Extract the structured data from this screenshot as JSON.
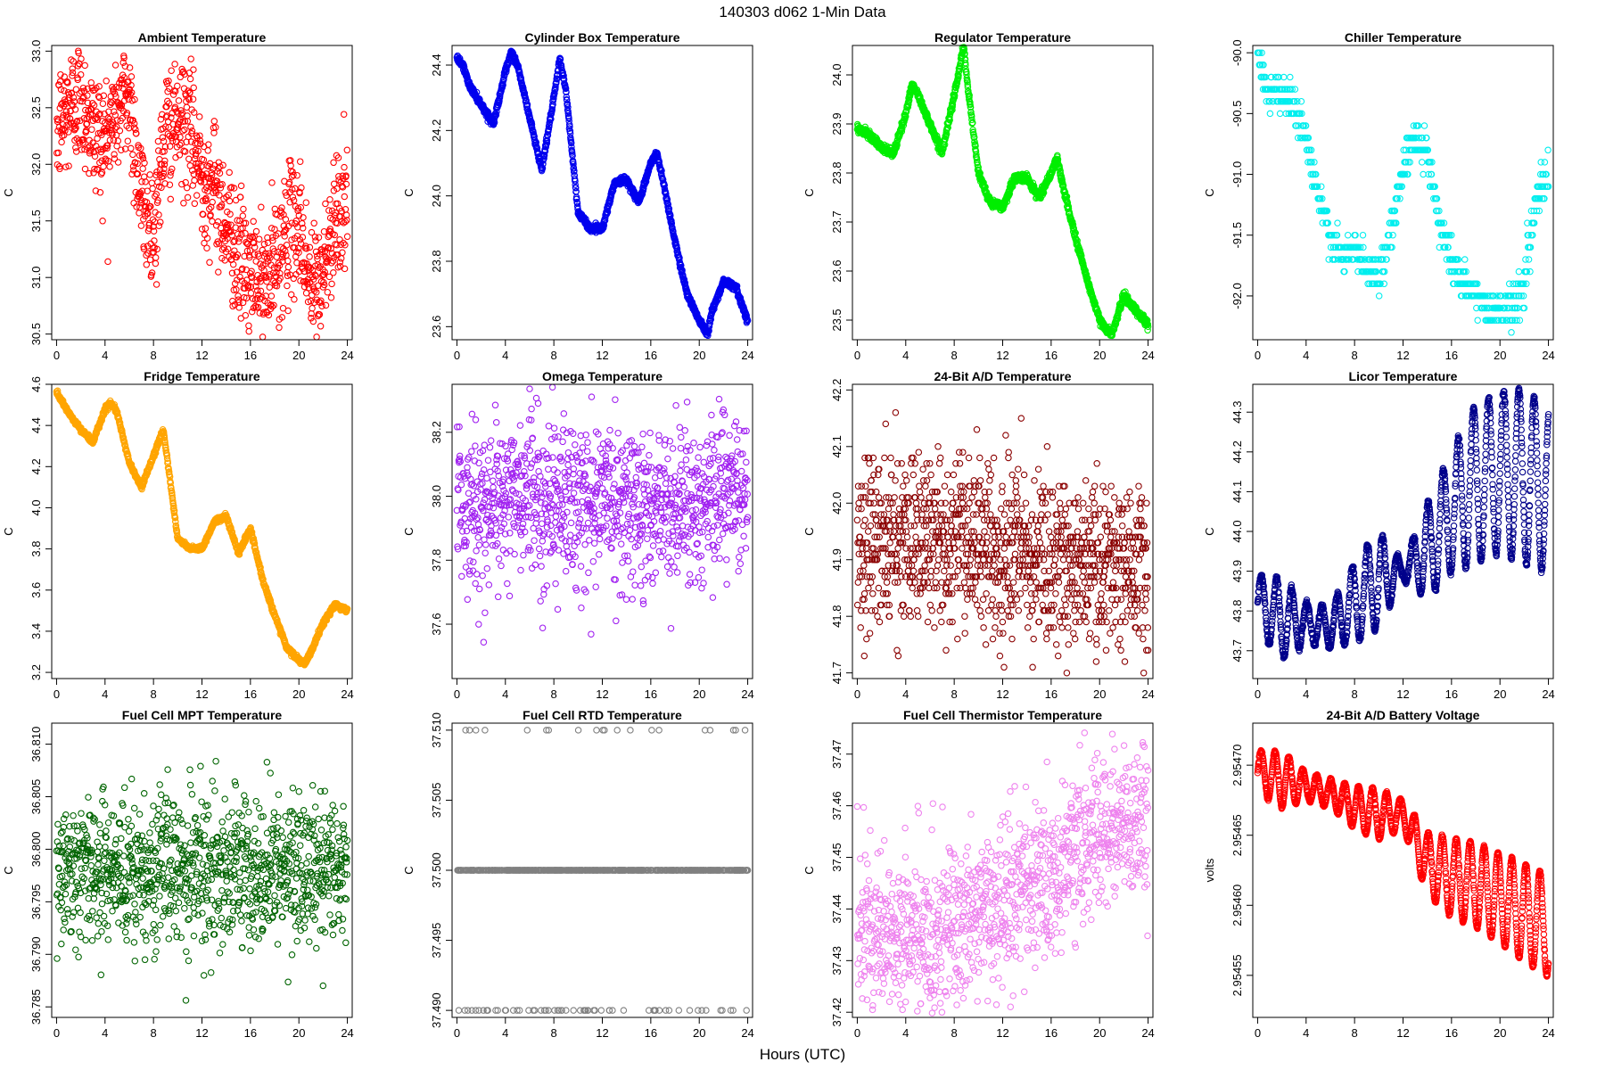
{
  "figure": {
    "title": "140303    d062    1-Min Data",
    "xlabel": "Hours (UTC)"
  },
  "chart_data": [
    {
      "type": "scatter",
      "title": "Ambient Temperature",
      "ylabel": "C",
      "color": "#ff0000",
      "ylim": [
        30.45,
        33.05
      ],
      "yticks": [
        30.5,
        31.0,
        31.5,
        32.0,
        32.5,
        33.0
      ],
      "ytick_labels": [
        "30.5",
        "31.0",
        "31.5",
        "32.0",
        "32.5",
        "33.0"
      ],
      "xlim": [
        -0.4,
        24.4
      ],
      "xticks": [
        0,
        4,
        8,
        12,
        16,
        20,
        24
      ],
      "pattern": "ambient",
      "density": 1100,
      "x": [
        0,
        1,
        2,
        3,
        4,
        5,
        6,
        7,
        8,
        9,
        10,
        11,
        12,
        13,
        14,
        15,
        16,
        17,
        18,
        19,
        20,
        21,
        22,
        23,
        24
      ],
      "y": [
        32.3,
        32.5,
        32.6,
        32.3,
        32.2,
        32.5,
        32.6,
        31.7,
        31.4,
        32.3,
        32.4,
        32.3,
        31.9,
        31.8,
        31.5,
        31.2,
        31.0,
        30.9,
        31.1,
        31.4,
        31.5,
        30.9,
        31.0,
        31.6,
        31.6
      ],
      "noise": 0.28
    },
    {
      "type": "scatter",
      "title": "Cylinder Box Temperature",
      "ylabel": "C",
      "color": "#0000ee",
      "ylim": [
        23.56,
        24.46
      ],
      "yticks": [
        23.6,
        23.8,
        24.0,
        24.2,
        24.4
      ],
      "ytick_labels": [
        "23.6",
        "23.8",
        "24.0",
        "24.2",
        "24.4"
      ],
      "xlim": [
        -0.4,
        24.4
      ],
      "xticks": [
        0,
        4,
        8,
        12,
        16,
        20,
        24
      ],
      "pattern": "smooth",
      "density": 1440,
      "x": [
        0,
        0.5,
        1,
        2,
        3,
        4,
        4.5,
        5,
        6,
        7,
        8,
        8.5,
        9,
        10,
        11,
        12,
        13,
        14,
        15,
        16,
        16.5,
        17,
        18,
        19,
        20,
        20.7,
        21,
        22,
        23,
        24
      ],
      "y": [
        24.42,
        24.4,
        24.34,
        24.28,
        24.22,
        24.38,
        24.44,
        24.4,
        24.24,
        24.08,
        24.3,
        24.42,
        24.32,
        23.95,
        23.9,
        23.9,
        24.04,
        24.05,
        23.98,
        24.1,
        24.13,
        24.05,
        23.86,
        23.7,
        23.62,
        23.58,
        23.64,
        23.74,
        23.72,
        23.62
      ],
      "noise": 0.005
    },
    {
      "type": "scatter",
      "title": "Regulator Temperature",
      "ylabel": "C",
      "color": "#00ee00",
      "ylim": [
        23.46,
        24.06
      ],
      "yticks": [
        23.5,
        23.6,
        23.7,
        23.8,
        23.9,
        24.0
      ],
      "ytick_labels": [
        "23.5",
        "23.6",
        "23.7",
        "23.8",
        "23.9",
        "24.0"
      ],
      "xlim": [
        -0.4,
        24.4
      ],
      "xticks": [
        0,
        4,
        8,
        12,
        16,
        20,
        24
      ],
      "pattern": "smooth",
      "density": 1440,
      "x": [
        0,
        1,
        2,
        3,
        4,
        4.5,
        5,
        6,
        7,
        8,
        8.8,
        9,
        10,
        11,
        12,
        13,
        14,
        15,
        16,
        16.5,
        17,
        18,
        19,
        20,
        21,
        22,
        23,
        24
      ],
      "y": [
        23.89,
        23.88,
        23.85,
        23.84,
        23.92,
        23.98,
        23.96,
        23.9,
        23.84,
        23.96,
        24.06,
        24.0,
        23.8,
        23.74,
        23.73,
        23.79,
        23.79,
        23.75,
        23.8,
        23.83,
        23.77,
        23.67,
        23.58,
        23.5,
        23.47,
        23.55,
        23.52,
        23.49
      ],
      "noise": 0.004
    },
    {
      "type": "scatter",
      "title": "Chiller Temperature",
      "ylabel": "C",
      "color": "#00eeee",
      "ylim": [
        -92.36,
        -89.94
      ],
      "yticks": [
        -92.0,
        -91.5,
        -91.0,
        -90.5,
        -90.0
      ],
      "ytick_labels": [
        "-92.0",
        "-91.5",
        "-91.0",
        "-90.5",
        "-90.0"
      ],
      "xlim": [
        -0.4,
        24.4
      ],
      "xticks": [
        0,
        4,
        8,
        12,
        16,
        20,
        24
      ],
      "pattern": "stepped",
      "step": 0.1,
      "density": 700,
      "x": [
        0,
        0.5,
        1,
        2,
        3,
        4,
        5,
        6,
        7,
        8,
        9,
        10,
        11,
        12,
        13,
        14,
        15,
        16,
        17,
        18,
        19,
        20,
        21,
        22,
        23,
        24
      ],
      "y": [
        -90.05,
        -90.2,
        -90.3,
        -90.35,
        -90.4,
        -90.7,
        -91.2,
        -91.5,
        -91.7,
        -91.6,
        -91.8,
        -91.8,
        -91.5,
        -90.9,
        -90.7,
        -90.8,
        -91.4,
        -91.7,
        -91.9,
        -92.0,
        -92.1,
        -92.1,
        -92.1,
        -91.9,
        -91.2,
        -91.0
      ],
      "noise": 0.08
    },
    {
      "type": "scatter",
      "title": "Fridge Temperature",
      "ylabel": "C",
      "color": "#ffa500",
      "ylim": [
        3.17,
        4.6
      ],
      "yticks": [
        3.2,
        3.4,
        3.6,
        3.8,
        4.0,
        4.2,
        4.4,
        4.6
      ],
      "ytick_labels": [
        "3.2",
        "3.4",
        "3.6",
        "3.8",
        "4.0",
        "4.2",
        "4.4",
        "4.6"
      ],
      "xlim": [
        -0.4,
        24.4
      ],
      "xticks": [
        0,
        4,
        8,
        12,
        16,
        20,
        24
      ],
      "pattern": "smooth",
      "density": 1440,
      "x": [
        0,
        1,
        2,
        3,
        4,
        4.5,
        5,
        6,
        7,
        8,
        8.8,
        9,
        10,
        11,
        12,
        13,
        14,
        15,
        16,
        17,
        18,
        19,
        20,
        20.5,
        21,
        22,
        23,
        24
      ],
      "y": [
        4.56,
        4.46,
        4.38,
        4.32,
        4.48,
        4.51,
        4.46,
        4.22,
        4.1,
        4.25,
        4.38,
        4.3,
        3.85,
        3.8,
        3.8,
        3.93,
        3.96,
        3.78,
        3.9,
        3.65,
        3.48,
        3.32,
        3.26,
        3.24,
        3.3,
        3.44,
        3.53,
        3.5
      ],
      "noise": 0.006
    },
    {
      "type": "scatter",
      "title": "Omega Temperature",
      "ylabel": "C",
      "color": "#a020f0",
      "ylim": [
        37.43,
        38.35
      ],
      "yticks": [
        37.6,
        37.8,
        38.0,
        38.2
      ],
      "ytick_labels": [
        "37.6",
        "37.8",
        "38.0",
        "38.2"
      ],
      "xlim": [
        -0.4,
        24.4
      ],
      "xticks": [
        0,
        4,
        8,
        12,
        16,
        20,
        24
      ],
      "pattern": "noisy",
      "density": 1100,
      "x": [
        0,
        2,
        4,
        6,
        8,
        10,
        12,
        14,
        16,
        18,
        20,
        22,
        24
      ],
      "y": [
        38.0,
        37.95,
        38.0,
        38.0,
        37.98,
        37.98,
        38.0,
        37.98,
        37.95,
        37.98,
        37.98,
        38.02,
        38.0
      ],
      "noise": 0.12
    },
    {
      "type": "scatter",
      "title": "24-Bit A/D Temperature",
      "ylabel": "C",
      "color": "#8b0000",
      "ylim": [
        41.69,
        42.21
      ],
      "yticks": [
        41.7,
        41.8,
        41.9,
        42.0,
        42.1,
        42.2
      ],
      "ytick_labels": [
        "41.7",
        "41.8",
        "41.9",
        "42.0",
        "42.1",
        "42.2"
      ],
      "xlim": [
        -0.4,
        24.4
      ],
      "xticks": [
        0,
        4,
        8,
        12,
        16,
        20,
        24
      ],
      "pattern": "stepped",
      "step": 0.01,
      "density": 1200,
      "x": [
        0,
        4,
        8,
        12,
        16,
        20,
        24
      ],
      "y": [
        41.94,
        41.93,
        41.94,
        41.9,
        41.9,
        41.89,
        41.89
      ],
      "noise": 0.075
    },
    {
      "type": "scatter",
      "title": "Licor Temperature",
      "ylabel": "C",
      "color": "#00008b",
      "ylim": [
        43.63,
        44.37
      ],
      "yticks": [
        43.7,
        43.8,
        43.9,
        44.0,
        44.1,
        44.2,
        44.3
      ],
      "ytick_labels": [
        "43.7",
        "43.8",
        "43.9",
        "44.0",
        "44.1",
        "44.2",
        "44.3"
      ],
      "xlim": [
        -0.4,
        24.4
      ],
      "xticks": [
        0,
        4,
        8,
        12,
        16,
        20,
        24
      ],
      "pattern": "oscillating",
      "period": 1.25,
      "density": 1440,
      "x": [
        0,
        2,
        4,
        6,
        8,
        10,
        12,
        14,
        16,
        18,
        20,
        22,
        24
      ],
      "y": [
        43.82,
        43.78,
        43.77,
        43.76,
        43.82,
        43.88,
        43.9,
        43.95,
        44.05,
        44.12,
        44.15,
        44.14,
        44.1
      ],
      "amp": [
        0.07,
        0.1,
        0.05,
        0.05,
        0.1,
        0.12,
        0.02,
        0.12,
        0.15,
        0.2,
        0.2,
        0.22,
        0.2
      ],
      "noise": 0.004
    },
    {
      "type": "scatter",
      "title": "Fuel Cell MPT Temperature",
      "ylabel": "C",
      "color": "#006400",
      "ylim": [
        36.784,
        36.812
      ],
      "yticks": [
        36.785,
        36.79,
        36.795,
        36.8,
        36.805,
        36.81
      ],
      "ytick_labels": [
        "36.785",
        "36.790",
        "36.795",
        "36.800",
        "36.805",
        "36.810"
      ],
      "xlim": [
        -0.4,
        24.4
      ],
      "xticks": [
        0,
        4,
        8,
        12,
        16,
        20,
        24
      ],
      "pattern": "noisy",
      "density": 1100,
      "x": [
        0,
        24
      ],
      "y": [
        36.798,
        36.798
      ],
      "noise": 0.0035
    },
    {
      "type": "scatter",
      "title": "Fuel Cell RTD Temperature",
      "ylabel": "C",
      "color": "#808080",
      "ylim": [
        37.4895,
        37.5105
      ],
      "yticks": [
        37.49,
        37.495,
        37.5,
        37.505,
        37.51
      ],
      "ytick_labels": [
        "37.490",
        "37.495",
        "37.500",
        "37.505",
        "37.510"
      ],
      "xlim": [
        -0.4,
        24.4
      ],
      "xticks": [
        0,
        4,
        8,
        12,
        16,
        20,
        24
      ],
      "pattern": "levels",
      "levels": [
        37.49,
        37.5,
        37.51
      ],
      "density": 1440,
      "x": [
        0,
        24
      ],
      "y": [
        37.5,
        37.5
      ],
      "noise": 0
    },
    {
      "type": "scatter",
      "title": "Fuel Cell Thermistor Temperature",
      "ylabel": "C",
      "color": "#ee82ee",
      "ylim": [
        37.419,
        37.476
      ],
      "yticks": [
        37.42,
        37.43,
        37.44,
        37.45,
        37.46,
        37.47
      ],
      "ytick_labels": [
        "37.42",
        "37.43",
        "37.44",
        "37.45",
        "37.46",
        "37.47"
      ],
      "xlim": [
        -0.4,
        24.4
      ],
      "xticks": [
        0,
        4,
        8,
        12,
        16,
        20,
        24
      ],
      "pattern": "noisy",
      "density": 1100,
      "x": [
        0,
        4,
        8,
        12,
        16,
        20,
        24
      ],
      "y": [
        37.436,
        37.434,
        37.437,
        37.442,
        37.445,
        37.455,
        37.458
      ],
      "noise": 0.0075
    },
    {
      "type": "scatter",
      "title": "24-Bit A/D Battery Voltage",
      "ylabel": "volts",
      "color": "#ff0000",
      "ylim": [
        2.95452,
        2.95473
      ],
      "yticks": [
        2.95455,
        2.9546,
        2.95465,
        2.9547
      ],
      "ytick_labels": [
        "2.95455",
        "2.95460",
        "2.95465",
        "2.95470"
      ],
      "xlim": [
        -0.4,
        24.4
      ],
      "xticks": [
        0,
        4,
        8,
        12,
        16,
        20,
        24
      ],
      "pattern": "oscillating",
      "period": 1.15,
      "density": 1440,
      "x": [
        0,
        2,
        4,
        6,
        8,
        10,
        12,
        14,
        16,
        18,
        20,
        22,
        24
      ],
      "y": [
        2.954695,
        2.95469,
        2.954685,
        2.95468,
        2.95467,
        2.954665,
        2.954665,
        2.95463,
        2.95462,
        2.954615,
        2.954605,
        2.954595,
        2.954585
      ],
      "amp": [
        1.5e-05,
        2e-05,
        1e-05,
        1e-05,
        1.5e-05,
        1.8e-05,
        1e-05,
        2.2e-05,
        2.8e-05,
        3e-05,
        3.2e-05,
        3.5e-05,
        3.6e-05
      ],
      "noise": 5e-07
    }
  ]
}
